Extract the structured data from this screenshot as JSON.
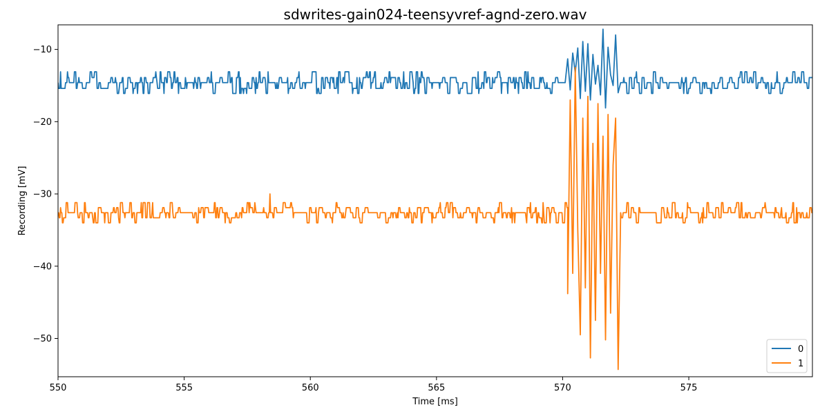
{
  "chart_data": {
    "type": "line",
    "title": "sdwrites-gain024-teensyvref-agnd-zero.wav",
    "xlabel": "Time [ms]",
    "ylabel": "Recording [mV]",
    "xlim": [
      550,
      579.9
    ],
    "ylim": [
      -55.3,
      -6.6
    ],
    "x_ticks": [
      550,
      555,
      560,
      565,
      570,
      575
    ],
    "y_ticks": [
      -50,
      -40,
      -30,
      -20,
      -10
    ],
    "x_tick_labels": [
      "550",
      "555",
      "560",
      "565",
      "570",
      "575"
    ],
    "y_tick_labels": [
      "−50",
      "−40",
      "−30",
      "−20",
      "−10"
    ],
    "legend_position": "bottom-right",
    "grid": false,
    "series": [
      {
        "name": "0",
        "color": "#1f77b4",
        "baseline": -14.6,
        "noise_levels": [
          -16.1,
          -15.4,
          -14.6,
          -13.9,
          -13.1
        ],
        "burst": {
          "x": [
            570.1,
            570.2,
            570.3,
            570.4,
            570.5,
            570.6,
            570.7,
            570.8,
            570.9,
            571.0,
            571.1,
            571.2,
            571.3,
            571.4,
            571.5,
            571.6,
            571.7,
            571.8,
            571.9,
            572.0,
            572.1,
            572.2,
            572.3
          ],
          "y": [
            -14.6,
            -11.3,
            -15.6,
            -10.5,
            -13.2,
            -9.8,
            -16.8,
            -8.9,
            -15.8,
            -9.2,
            -17.0,
            -10.7,
            -14.8,
            -12.2,
            -16.3,
            -7.2,
            -18.1,
            -9.7,
            -13.5,
            -15.0,
            -8.0,
            -16.0,
            -14.6
          ]
        }
      },
      {
        "name": "1",
        "color": "#ff7f0e",
        "baseline": -32.6,
        "noise_levels": [
          -34.0,
          -33.3,
          -32.6,
          -31.9,
          -31.2
        ],
        "spike": {
          "x": 558.4,
          "y": -30.0
        },
        "burst": {
          "x": [
            570.2,
            570.3,
            570.4,
            570.5,
            570.6,
            570.7,
            570.8,
            570.9,
            571.0,
            571.1,
            571.2,
            571.3,
            571.4,
            571.5,
            571.6,
            571.7,
            571.8,
            571.9,
            572.0,
            572.1,
            572.2,
            572.3
          ],
          "y": [
            -43.8,
            -17.0,
            -41.0,
            -12.5,
            -35.0,
            -49.5,
            -19.5,
            -43.0,
            -16.5,
            -52.7,
            -23.0,
            -47.5,
            -17.5,
            -41.0,
            -22.0,
            -50.2,
            -19.0,
            -46.5,
            -26.0,
            -19.5,
            -54.3,
            -32.6
          ]
        }
      }
    ]
  }
}
